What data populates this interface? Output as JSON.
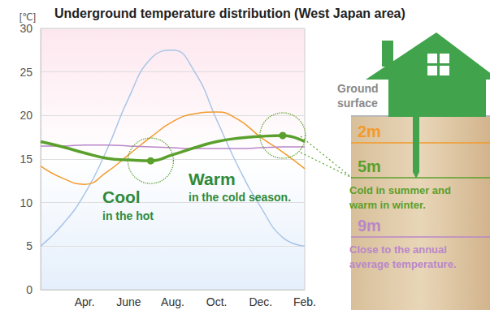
{
  "chart_data": {
    "type": "line",
    "title": "Underground temperature distribution (West Japan area)",
    "y_label": "[℃]",
    "categories": [
      null,
      null,
      "Apr.",
      null,
      "June",
      null,
      "Aug.",
      null,
      "Oct.",
      null,
      "Dec.",
      null,
      "Feb."
    ],
    "series": [
      {
        "color": "#a9c5e8",
        "values": [
          5,
          7.5,
          11,
          16,
          22,
          26.5,
          27.5,
          25,
          19.5,
          14,
          9.5,
          6,
          5
        ]
      },
      {
        "name": "2m",
        "color": "#f39a2b",
        "values": [
          14.2,
          12.8,
          12.1,
          13.5,
          15.5,
          17.5,
          19.3,
          20.2,
          20.4,
          19.5,
          17.5,
          15.8,
          13.9
        ]
      },
      {
        "name": "5m",
        "color": "#5aa02c",
        "line_style": "bold",
        "marker": "circle",
        "values": [
          17,
          16.4,
          15.7,
          15.1,
          14.9,
          14.8,
          15.5,
          16.3,
          17,
          17.4,
          17.6,
          17.7,
          17
        ]
      },
      {
        "name": "9m",
        "color": "#b987c9",
        "values": [
          16.5,
          16.5,
          16.6,
          16.6,
          16.5,
          16.4,
          16.3,
          16.2,
          16.2,
          16.2,
          16.3,
          16.4,
          16.4
        ]
      }
    ],
    "ylim": [
      0,
      30
    ],
    "yticks": [
      0,
      5,
      10,
      15,
      20,
      25,
      30
    ],
    "grid": true,
    "annotations": [
      {
        "text": "Cool",
        "subtext": "in the hot"
      },
      {
        "text": "Warm",
        "subtext": "in the cold season."
      }
    ]
  },
  "diagram": {
    "ground_label": "Ground surface",
    "notes": [
      {
        "series": "5m",
        "text": "Cold in summer and warm in winter."
      },
      {
        "series": "9m",
        "text": "Close to the annual average temperature."
      }
    ]
  }
}
